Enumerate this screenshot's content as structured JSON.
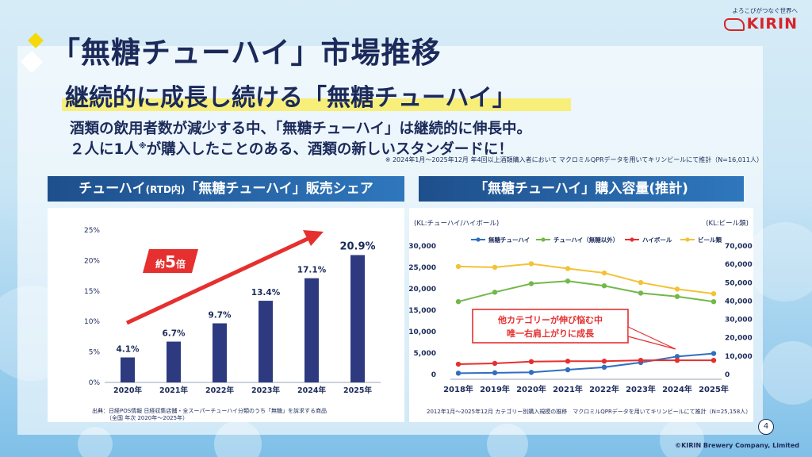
{
  "header": {
    "title": "「無糖チューハイ」市場推移",
    "subtitle": "継続的に成長し続ける「無糖チューハイ」",
    "desc_line1": "酒類の飲用者数が減少する中、「無糖チューハイ」は継続的に伸長中。",
    "desc_line2_pre": "２人に1人",
    "desc_line2_mark": "※",
    "desc_line2_post": "が購入したことのある、酒類の新しいスタンダードに！",
    "note": "※ 2024年1月～2025年12月 年4回以上酒類購入者において マクロミルQPRデータを用いてキリンビールにて推計（N=16,011人）"
  },
  "logo": {
    "tagline": "よろこびがつなぐ世界へ",
    "brand": "KIRIN"
  },
  "left_panel": {
    "title_pre": "チューハイ",
    "title_small": "(RTD内)",
    "title_post": "「無糖チューハイ」販売シェア",
    "source_line1": "出典：日経POS情報 日経収集店舗・全スーパーチューハイ分類のうち「無糖」を訴求する商品",
    "source_line2": "（全国 年次 2020年～2025年）"
  },
  "right_panel": {
    "title": "「無糖チューハイ」購入容量(推計)",
    "source": "2012年1月～2025年12月 カテゴリー別購入規模の推移　マクロミルQPRデータを用いてキリンビールにて推計（N=25,158人）"
  },
  "footer": {
    "page": "4",
    "copyright": "©KIRIN Brewery Company, Limited"
  },
  "colors": {
    "navy": "#2e3a80",
    "red": "#e5302f",
    "blue": "#2f6fc0",
    "green": "#72b84a",
    "orange": "#f6a531",
    "yellow": "#f4c236"
  },
  "chart_data": [
    {
      "type": "bar",
      "categories": [
        "2020年",
        "2021年",
        "2022年",
        "2023年",
        "2024年",
        "2025年"
      ],
      "values": [
        4.1,
        6.7,
        9.7,
        13.4,
        17.1,
        20.9
      ],
      "value_labels": [
        "4.1%",
        "6.7%",
        "9.7%",
        "13.4%",
        "17.1%",
        "20.9%"
      ],
      "yticks": [
        "0%",
        "5%",
        "10%",
        "15%",
        "20%",
        "25%"
      ],
      "ylim": [
        0,
        25
      ],
      "annotation_pre": "約",
      "annotation_num": "5",
      "annotation_post": "倍",
      "grid": false
    },
    {
      "type": "line",
      "categories": [
        "2018年",
        "2019年",
        "2020年",
        "2021年",
        "2022年",
        "2023年",
        "2024年",
        "2025年"
      ],
      "left_axis_label": "(KL:チューハイ/ハイボール)",
      "right_axis_label": "(KL:ビール類)",
      "left_ticks": [
        "0",
        "5,000",
        "10,000",
        "15,000",
        "20,000",
        "25,000",
        "30,000"
      ],
      "right_ticks": [
        "0",
        "10,000",
        "20,000",
        "30,000",
        "40,000",
        "50,000",
        "60,000",
        "70,000"
      ],
      "ylim_left": [
        0,
        30000
      ],
      "ylim_right": [
        0,
        70000
      ],
      "legend_position": "top",
      "series": [
        {
          "name": "無糖チューハイ",
          "axis": "left",
          "color": "#2f6fc0",
          "values": [
            300,
            400,
            500,
            1100,
            1700,
            2800,
            4200,
            4900
          ]
        },
        {
          "name": "チューハイ（無糖以外）",
          "axis": "left",
          "color": "#72b84a",
          "values": [
            17000,
            19200,
            21200,
            21800,
            20700,
            19000,
            18200,
            17000
          ]
        },
        {
          "name": "ハイボール",
          "axis": "left",
          "color": "#e5302f",
          "values": [
            2400,
            2600,
            3000,
            3100,
            3100,
            3300,
            3300,
            3300
          ]
        },
        {
          "name": "ビール類",
          "axis": "right",
          "color": "#f4c236",
          "values": [
            58800,
            58400,
            60300,
            57700,
            55300,
            50100,
            46500,
            44000
          ]
        }
      ],
      "callout_line1": "他カテゴリーが伸び悩む中",
      "callout_line2": "唯一右肩上がりに成長"
    }
  ]
}
